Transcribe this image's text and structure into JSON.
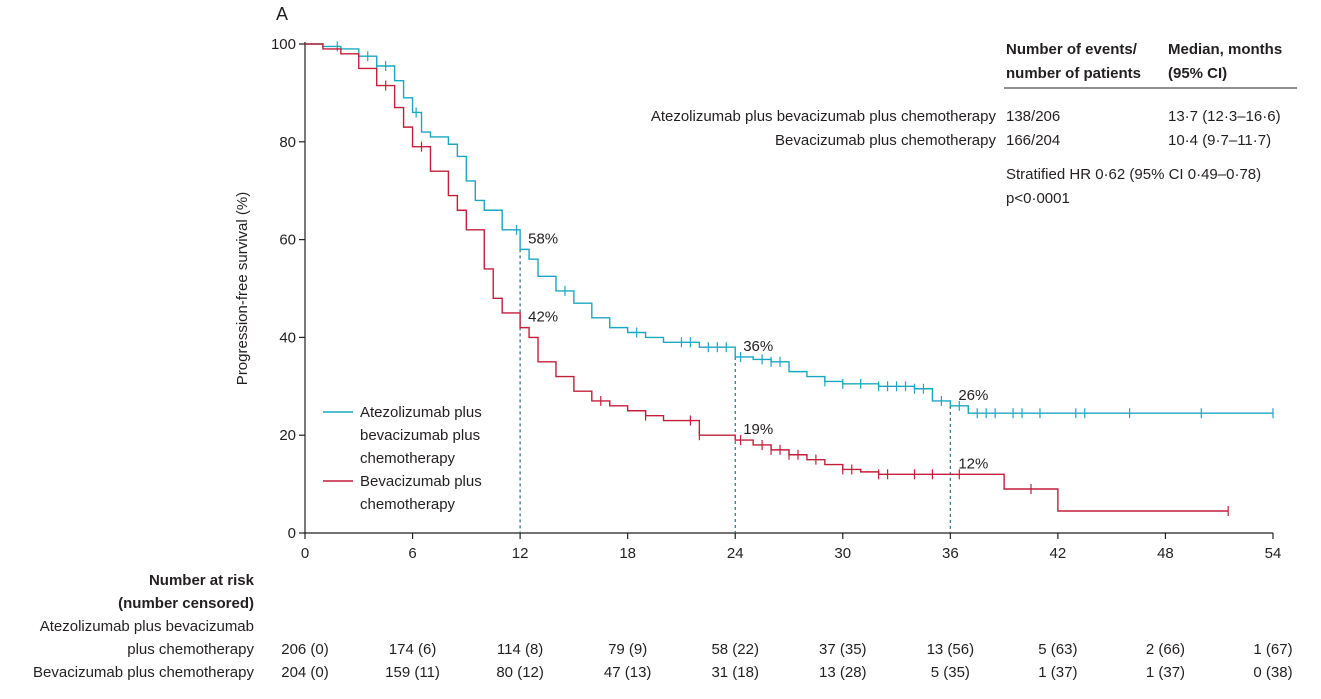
{
  "chart_data": {
    "type": "line",
    "panel_label": "A",
    "xlabel": "",
    "ylabel": "Progression-free survival (%)",
    "xlim": [
      0,
      54
    ],
    "ylim": [
      0,
      100
    ],
    "xticks": [
      0,
      6,
      12,
      18,
      24,
      30,
      36,
      42,
      48,
      54
    ],
    "yticks": [
      0,
      20,
      40,
      60,
      80,
      100
    ],
    "grid": false,
    "legend_position": "lower-left",
    "colors": {
      "atezolizumab": "#1aa7c2",
      "bevacizumab": "#c21f3b",
      "marker_line": "#2e6e7a",
      "axis": "#231f20"
    },
    "series": [
      {
        "name": "Atezolizumab plus bevacizumab plus chemotherapy",
        "legend_lines": [
          "Atezolizumab plus",
          "bevacizumab plus",
          "chemotherapy"
        ],
        "color_key": "atezolizumab",
        "points": [
          [
            0,
            100
          ],
          [
            1,
            99.5
          ],
          [
            2,
            99
          ],
          [
            3,
            97.5
          ],
          [
            4,
            95.5
          ],
          [
            5,
            92.5
          ],
          [
            5.5,
            89
          ],
          [
            6,
            86
          ],
          [
            6.5,
            82
          ],
          [
            7,
            81
          ],
          [
            8,
            79.5
          ],
          [
            8.5,
            77
          ],
          [
            9,
            72
          ],
          [
            9.5,
            68
          ],
          [
            10,
            66
          ],
          [
            11,
            62
          ],
          [
            12,
            58
          ],
          [
            12.5,
            56
          ],
          [
            13,
            52.5
          ],
          [
            14,
            49.5
          ],
          [
            15,
            47
          ],
          [
            16,
            44
          ],
          [
            17,
            42
          ],
          [
            18,
            41
          ],
          [
            19,
            40
          ],
          [
            20,
            39
          ],
          [
            22,
            38
          ],
          [
            24,
            36
          ],
          [
            25,
            35.5
          ],
          [
            26,
            35
          ],
          [
            27,
            33
          ],
          [
            28,
            32
          ],
          [
            29,
            31
          ],
          [
            30,
            30.5
          ],
          [
            32,
            30
          ],
          [
            34,
            29.5
          ],
          [
            35,
            27
          ],
          [
            36,
            26
          ],
          [
            37,
            24.5
          ],
          [
            54,
            24.5
          ]
        ],
        "censor_x": [
          1.8,
          3.5,
          4,
          4.5,
          6.2,
          11.8,
          14.5,
          18.5,
          21,
          21.5,
          22.5,
          23,
          23.5,
          24.3,
          25.5,
          26,
          26.5,
          29,
          30,
          31,
          32,
          32.5,
          33,
          33.5,
          34,
          34.5,
          35.5,
          36.5,
          37.5,
          38,
          38.5,
          39.5,
          40,
          41,
          43,
          43.5,
          46,
          50,
          54
        ]
      },
      {
        "name": "Bevacizumab plus chemotherapy",
        "legend_lines": [
          "Bevacizumab plus",
          "chemotherapy"
        ],
        "color_key": "bevacizumab",
        "points": [
          [
            0,
            100
          ],
          [
            1,
            99
          ],
          [
            2,
            98
          ],
          [
            3,
            95
          ],
          [
            4,
            91.5
          ],
          [
            5,
            87
          ],
          [
            5.5,
            83
          ],
          [
            6,
            79
          ],
          [
            7,
            74
          ],
          [
            8,
            69
          ],
          [
            8.5,
            66
          ],
          [
            9,
            62
          ],
          [
            10,
            54
          ],
          [
            10.5,
            48
          ],
          [
            11,
            45
          ],
          [
            12,
            42
          ],
          [
            12.5,
            40
          ],
          [
            13,
            35
          ],
          [
            14,
            32
          ],
          [
            15,
            29
          ],
          [
            16,
            27
          ],
          [
            17,
            26
          ],
          [
            18,
            25
          ],
          [
            19,
            24
          ],
          [
            20,
            23
          ],
          [
            22,
            20
          ],
          [
            24,
            19
          ],
          [
            25,
            18
          ],
          [
            26,
            17
          ],
          [
            27,
            16
          ],
          [
            28,
            15
          ],
          [
            29,
            14
          ],
          [
            30,
            13
          ],
          [
            31,
            12.5
          ],
          [
            32,
            12
          ],
          [
            34,
            12
          ],
          [
            36,
            12
          ],
          [
            39,
            9
          ],
          [
            42,
            4.5
          ],
          [
            51.5,
            4.5
          ]
        ],
        "censor_x": [
          4.5,
          6.5,
          16.5,
          19,
          21.5,
          22,
          24.3,
          25.5,
          26,
          26.5,
          27,
          27.5,
          28.5,
          30,
          30.5,
          32,
          32.5,
          34,
          35,
          36.5,
          40.5,
          51.5
        ]
      }
    ],
    "reference_lines": [
      {
        "x": 12,
        "values": [
          58,
          42
        ]
      },
      {
        "x": 24,
        "values": [
          36,
          19
        ]
      },
      {
        "x": 36,
        "values": [
          26,
          12
        ]
      }
    ],
    "annotations": [
      {
        "text": "58%",
        "x": 12,
        "y": 58
      },
      {
        "text": "42%",
        "x": 12,
        "y": 42
      },
      {
        "text": "36%",
        "x": 24,
        "y": 36
      },
      {
        "text": "19%",
        "x": 24,
        "y": 19
      },
      {
        "text": "26%",
        "x": 36,
        "y": 26
      },
      {
        "text": "12%",
        "x": 36,
        "y": 12
      }
    ],
    "summary_table": {
      "header_events": [
        "Number of events/",
        "number of patients"
      ],
      "header_median": [
        "Median, months",
        "(95% CI)"
      ],
      "rows": [
        {
          "label": "Atezolizumab plus bevacizumab plus chemotherapy",
          "events": "138/206",
          "median": "13·7 (12·3–16·6)"
        },
        {
          "label": "Bevacizumab plus chemotherapy",
          "events": "166/204",
          "median": "10·4 (9·7–11·7)"
        }
      ],
      "stat_lines": [
        "Stratified HR 0·62 (95% CI 0·49–0·78)",
        "p<0·0001"
      ]
    },
    "risk_table": {
      "title_lines": [
        "Number at risk",
        "(number censored)"
      ],
      "rows": [
        {
          "label_lines": [
            "Atezolizumab plus bevacizumab",
            "plus chemotherapy"
          ],
          "values": [
            "206 (0)",
            "174 (6)",
            "114 (8)",
            "79 (9)",
            "58 (22)",
            "37 (35)",
            "13 (56)",
            "5 (63)",
            "2 (66)",
            "1 (67)"
          ]
        },
        {
          "label_lines": [
            "Bevacizumab plus chemotherapy"
          ],
          "values": [
            "204 (0)",
            "159 (11)",
            "80 (12)",
            "47 (13)",
            "31 (18)",
            "13 (28)",
            "5 (35)",
            "1 (37)",
            "1 (37)",
            "0 (38)"
          ]
        }
      ]
    }
  }
}
